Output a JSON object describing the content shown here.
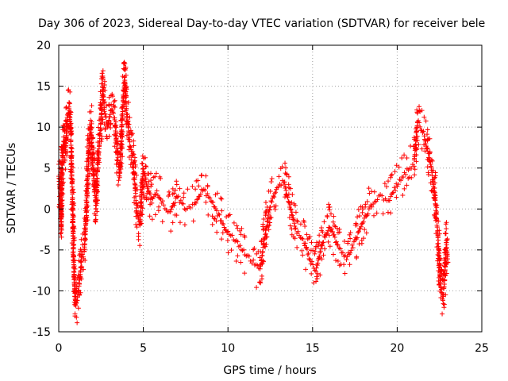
{
  "chart_data": {
    "type": "scatter",
    "title": "Day 306 of 2023, Sidereal Day-to-day VTEC variation (SDTVAR) for receiver bele",
    "xlabel": "GPS time / hours",
    "ylabel": "SDTVAR / TECUs",
    "xlim": [
      0,
      25
    ],
    "ylim": [
      -15,
      20
    ],
    "xticks": [
      0,
      5,
      10,
      15,
      20,
      25
    ],
    "yticks": [
      -15,
      -10,
      -5,
      0,
      5,
      10,
      15,
      20
    ],
    "xtick_labels": [
      "0",
      "5",
      "10",
      "15",
      "20",
      "25"
    ],
    "ytick_labels": [
      "-15",
      "-10",
      "-5",
      "0",
      "5",
      "10",
      "15",
      "20"
    ],
    "grid": true,
    "marker": "+",
    "color": "#ff0000",
    "series": [
      {
        "name": "SDTVAR",
        "trace": [
          [
            0.0,
            4.0
          ],
          [
            0.1,
            2.0
          ],
          [
            0.15,
            -2.5
          ],
          [
            0.2,
            5.0
          ],
          [
            0.3,
            8.5
          ],
          [
            0.4,
            7.0
          ],
          [
            0.5,
            11.0
          ],
          [
            0.6,
            12.3
          ],
          [
            0.7,
            10.0
          ],
          [
            0.75,
            6.0
          ],
          [
            0.8,
            2.0
          ],
          [
            0.85,
            -3.0
          ],
          [
            0.9,
            -8.0
          ],
          [
            1.0,
            -12.0
          ],
          [
            1.1,
            -11.0
          ],
          [
            1.2,
            -9.5
          ],
          [
            1.35,
            -6.0
          ],
          [
            1.5,
            -5.5
          ],
          [
            1.6,
            -2.0
          ],
          [
            1.7,
            3.0
          ],
          [
            1.8,
            8.0
          ],
          [
            1.9,
            10.0
          ],
          [
            2.0,
            6.0
          ],
          [
            2.1,
            3.0
          ],
          [
            2.2,
            0.0
          ],
          [
            2.3,
            5.0
          ],
          [
            2.5,
            11.0
          ],
          [
            2.6,
            15.0
          ],
          [
            2.7,
            12.0
          ],
          [
            2.9,
            10.0
          ],
          [
            3.1,
            12.5
          ],
          [
            3.3,
            11.0
          ],
          [
            3.4,
            8.0
          ],
          [
            3.6,
            4.0
          ],
          [
            3.8,
            13.0
          ],
          [
            3.9,
            16.0
          ],
          [
            4.0,
            12.0
          ],
          [
            4.2,
            8.0
          ],
          [
            4.4,
            6.0
          ],
          [
            4.5,
            3.0
          ],
          [
            4.6,
            0.0
          ],
          [
            4.8,
            -2.0
          ],
          [
            5.0,
            5.0
          ],
          [
            5.2,
            3.0
          ],
          [
            5.5,
            1.0
          ],
          [
            5.8,
            2.0
          ],
          [
            6.2,
            0.5
          ],
          [
            6.6,
            -0.5
          ],
          [
            7.0,
            1.5
          ],
          [
            7.5,
            0.0
          ],
          [
            8.0,
            0.5
          ],
          [
            8.5,
            2.5
          ],
          [
            9.0,
            1.0
          ],
          [
            9.5,
            -1.0
          ],
          [
            10.0,
            -3.0
          ],
          [
            10.5,
            -4.0
          ],
          [
            11.0,
            -5.5
          ],
          [
            11.5,
            -6.5
          ],
          [
            11.9,
            -7.5
          ],
          [
            12.2,
            -3.0
          ],
          [
            12.5,
            0.5
          ],
          [
            12.9,
            2.5
          ],
          [
            13.3,
            3.5
          ],
          [
            13.7,
            0.0
          ],
          [
            14.0,
            -2.5
          ],
          [
            14.5,
            -4.0
          ],
          [
            14.9,
            -6.5
          ],
          [
            15.2,
            -7.5
          ],
          [
            15.6,
            -4.0
          ],
          [
            16.0,
            -2.0
          ],
          [
            16.5,
            -4.5
          ],
          [
            17.0,
            -6.0
          ],
          [
            17.5,
            -4.0
          ],
          [
            18.0,
            -1.5
          ],
          [
            18.5,
            0.5
          ],
          [
            19.0,
            1.5
          ],
          [
            19.5,
            1.0
          ],
          [
            20.0,
            3.0
          ],
          [
            20.5,
            4.5
          ],
          [
            21.0,
            5.5
          ],
          [
            21.2,
            10.8
          ],
          [
            21.6,
            9.0
          ],
          [
            22.0,
            5.0
          ],
          [
            22.2,
            2.0
          ],
          [
            22.4,
            -3.0
          ],
          [
            22.55,
            -9.0
          ],
          [
            22.7,
            -11.0
          ],
          [
            22.8,
            -9.0
          ],
          [
            22.9,
            -4.0
          ],
          [
            23.0,
            -6.5
          ]
        ]
      }
    ]
  }
}
